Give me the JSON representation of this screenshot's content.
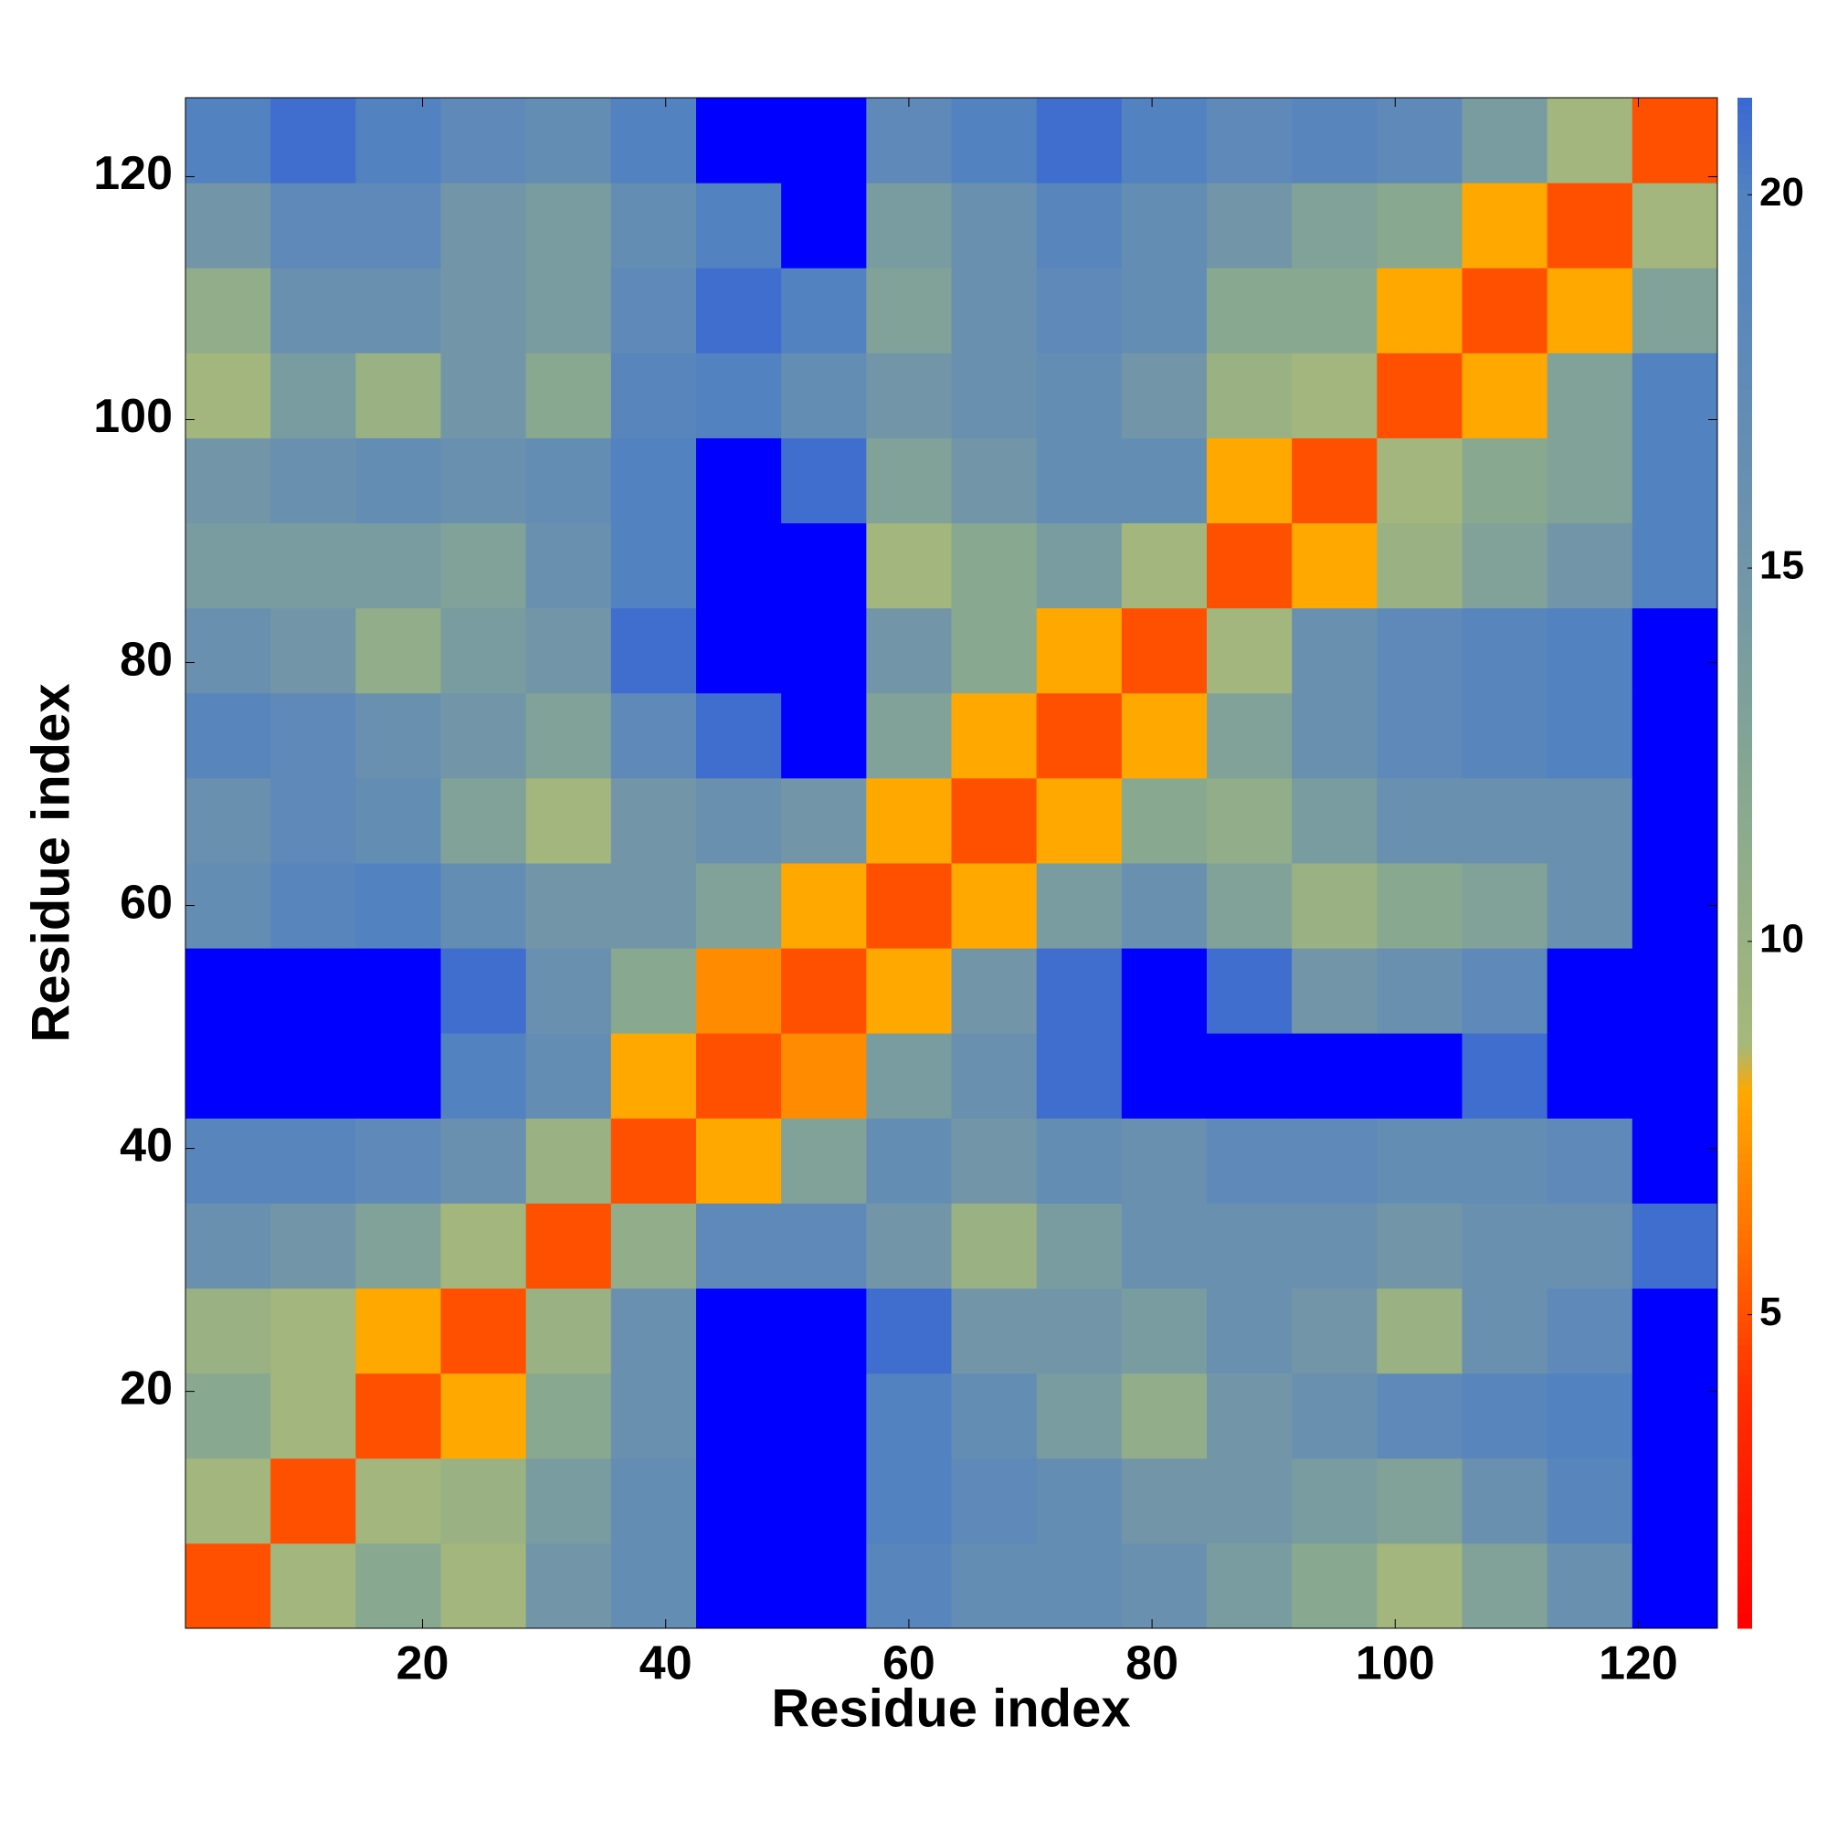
{
  "chart_data": {
    "type": "heatmap",
    "xlabel": "Residue index",
    "ylabel": "Residue index",
    "xbins": [
      0.5,
      7.5,
      14.5,
      21.5,
      28.5,
      35.5,
      42.5,
      49.5,
      56.5,
      63.5,
      70.5,
      77.5,
      84.5,
      91.5,
      98.5,
      105.5,
      112.5,
      119.5,
      126.5
    ],
    "ybins": [
      0.5,
      7.5,
      14.5,
      21.5,
      28.5,
      35.5,
      42.5,
      49.5,
      56.5,
      63.5,
      70.5,
      77.5,
      84.5,
      91.5,
      98.5,
      105.5,
      112.5,
      119.5,
      126.5
    ],
    "xlim": [
      0.5,
      126.5
    ],
    "ylim": [
      0.5,
      126.5
    ],
    "xticks": [
      20,
      40,
      60,
      80,
      100,
      120
    ],
    "yticks": [
      20,
      40,
      60,
      80,
      100,
      120
    ],
    "values": [
      [
        5,
        9,
        12,
        9,
        15,
        17,
        22,
        22,
        19,
        17,
        17,
        16,
        14,
        12,
        9,
        13,
        16,
        22
      ],
      [
        9,
        5,
        9,
        10,
        14,
        17,
        22,
        22,
        20,
        18,
        17,
        15,
        15,
        14,
        13,
        16,
        19,
        22
      ],
      [
        12,
        9,
        5,
        8,
        12,
        16,
        22,
        22,
        20,
        17,
        14,
        11,
        15,
        16,
        18,
        19,
        20,
        22
      ],
      [
        10,
        9,
        8,
        5,
        10,
        16,
        22,
        22,
        21,
        15,
        15,
        14,
        16,
        15,
        10,
        16,
        18,
        22
      ],
      [
        16,
        15,
        13,
        9,
        5,
        11,
        18,
        18,
        15,
        10,
        14,
        16,
        16,
        16,
        15,
        16,
        16,
        21
      ],
      [
        19,
        19,
        18,
        16,
        10,
        5,
        8,
        13,
        17,
        15,
        17,
        16,
        18,
        18,
        17,
        17,
        18,
        22
      ],
      [
        22,
        22,
        22,
        20,
        17,
        8,
        5,
        7,
        14,
        16,
        21,
        22,
        22,
        22,
        22,
        21,
        22,
        22
      ],
      [
        22,
        22,
        22,
        21,
        16,
        12,
        7,
        5,
        8,
        15,
        21,
        22,
        21,
        15,
        16,
        18,
        22,
        22
      ],
      [
        17,
        19,
        20,
        17,
        15,
        15,
        13,
        8,
        5,
        8,
        14,
        16,
        13,
        10,
        12,
        13,
        16,
        22
      ],
      [
        16,
        18,
        17,
        13,
        9,
        15,
        16,
        15,
        8,
        5,
        8,
        12,
        11,
        14,
        16,
        16,
        16,
        22
      ],
      [
        19,
        18,
        16,
        15,
        13,
        18,
        21,
        22,
        13,
        8,
        5,
        8,
        13,
        16,
        18,
        19,
        20,
        22
      ],
      [
        16,
        15,
        11,
        14,
        15,
        21,
        22,
        22,
        15,
        12,
        8,
        5,
        9,
        16,
        18,
        19,
        20,
        22
      ],
      [
        14,
        14,
        14,
        13,
        16,
        20,
        22,
        22,
        9,
        12,
        14,
        9,
        5,
        8,
        10,
        13,
        15,
        20
      ],
      [
        15,
        16,
        17,
        16,
        17,
        20,
        22,
        21,
        13,
        15,
        17,
        17,
        8,
        5,
        9,
        12,
        13,
        20
      ],
      [
        9,
        14,
        10,
        15,
        12,
        19,
        20,
        17,
        15,
        16,
        17,
        15,
        10,
        9,
        5,
        8,
        13,
        20
      ],
      [
        11,
        16,
        16,
        15,
        14,
        18,
        21,
        20,
        13,
        16,
        18,
        17,
        12,
        12,
        8,
        5,
        8,
        13
      ],
      [
        15,
        18,
        18,
        15,
        14,
        17,
        20,
        22,
        14,
        16,
        19,
        17,
        15,
        13,
        12,
        8,
        5,
        9
      ],
      [
        20,
        21,
        20,
        18,
        17,
        20,
        22,
        22,
        18,
        20,
        21,
        20,
        18,
        19,
        18,
        14,
        9,
        5
      ]
    ],
    "clim": [
      0.8,
      21.3
    ],
    "cticks": [
      5,
      10,
      15,
      20
    ],
    "colorscale": [
      [
        0.8,
        "#ff0000"
      ],
      [
        4,
        "#ff3000"
      ],
      [
        6,
        "#ff7000"
      ],
      [
        8,
        "#ffa800"
      ],
      [
        8.6,
        "#a6b87a"
      ],
      [
        12,
        "#88a890"
      ],
      [
        16,
        "#6a90b0"
      ],
      [
        20,
        "#5282c0"
      ],
      [
        21.3,
        "#3a68d4"
      ]
    ],
    "over_color": "#0000ff"
  }
}
